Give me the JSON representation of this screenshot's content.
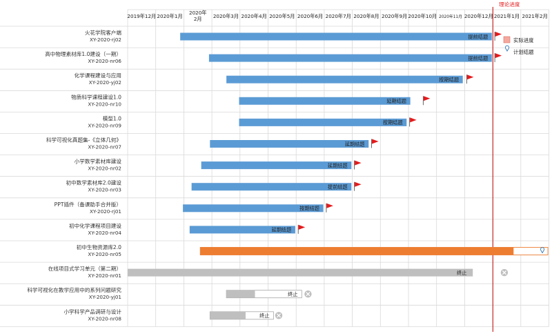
{
  "colors": {
    "actual_bar": "#5b9bd5",
    "active_bar": "#ed7d31",
    "terminated_bar": "#bfbfbf",
    "flag": "#e41a1c",
    "theory_line": "#c00000",
    "grid": "#d9d9d9",
    "legend_marker": "#f4a9a0",
    "plan_pin": "#2e75b6",
    "cancel_icon": "#bfbfbf"
  },
  "chart_data": {
    "type": "gantt",
    "months": [
      "2019年12月",
      "2020年1月",
      "2020年2月",
      "2020年3月",
      "2020年4月",
      "2020年5月",
      "2020年6月",
      "2020年7月",
      "2020年8月",
      "2020年9月",
      "2020年10月",
      "2020年11月",
      "2020年12月",
      "2021年1月",
      "2021年2月"
    ],
    "legend": {
      "actual": "实际进度",
      "planned": "计划结题"
    },
    "theory_line": {
      "label": "理论进度",
      "date": "2020-12-31"
    },
    "projects": [
      {
        "name": "火花学院客户端",
        "code": "XY-2020-rj02",
        "start": "2020-01-28",
        "end": "2020-12-31",
        "status": "提前结题",
        "flag_date": "2021-01-01",
        "type": "done"
      },
      {
        "name": "高中物理素材库1.0建设（一期）",
        "code": "XY-2020-nr06",
        "start": "2020-02-27",
        "end": "2020-12-31",
        "status": "提前结题",
        "flag_date": "2021-01-01",
        "type": "done"
      },
      {
        "name": "化学课程建设与应用",
        "code": "XY-2020-yj02",
        "start": "2020-03-17",
        "end": "2020-11-29",
        "status": "按期结题",
        "flag_date": "2020-12-01",
        "type": "done"
      },
      {
        "name": "物质科学课程建设1.0",
        "code": "XY-2020-nr10",
        "start": "2020-03-31",
        "end": "2020-10-03",
        "status": "延期结题",
        "flag_date": "2020-10-15",
        "type": "done"
      },
      {
        "name": "模型1.0",
        "code": "XY-2020-nr09",
        "start": "2020-03-31",
        "end": "2020-09-29",
        "status": "按期结题",
        "flag_date": "2020-09-30",
        "type": "done"
      },
      {
        "name": "科学可视化真题集-《立体几何》",
        "code": "XY-2020-nr07",
        "start": "2020-02-28",
        "end": "2020-08-19",
        "status": "延期结题",
        "flag_date": "2020-08-20",
        "type": "done"
      },
      {
        "name": "小学数学素材库建设",
        "code": "XY-2020-nr02",
        "start": "2020-02-19",
        "end": "2020-07-31",
        "status": "延期结题",
        "flag_date": "2020-08-01",
        "type": "done"
      },
      {
        "name": "初中数学素材库2.0建设",
        "code": "XY-2020-nr03",
        "start": "2020-02-09",
        "end": "2020-07-31",
        "status": "提前结题",
        "flag_date": "2020-08-01",
        "type": "done"
      },
      {
        "name": "PPT插件（备课助手合并版）",
        "code": "XY-2020-rj01",
        "start": "2020-01-31",
        "end": "2020-06-30",
        "status": "按期结题",
        "flag_date": "2020-07-01",
        "type": "done"
      },
      {
        "name": "初中化学课程项目建设",
        "code": "XY-2020-nr04",
        "start": "2020-02-07",
        "end": "2020-05-31",
        "status": "延期结题",
        "flag_date": "2020-06-01",
        "type": "done"
      },
      {
        "name": "初中生物资源库2.0",
        "code": "XY-2020-nr05",
        "start": "2020-02-18",
        "end": "2021-01-24",
        "plan_end": "2021-02-28",
        "status": "",
        "type": "active"
      },
      {
        "name": "在线项目式学习单元（第二期）",
        "code": "XY-2020-nr01",
        "start": "2019-12-01",
        "end": "2020-12-10",
        "status": "终止",
        "cancel_date": "2021-01-10",
        "type": "terminated"
      },
      {
        "name": "科学可视化在教学应用中的系列问题研究",
        "code": "XY-2020-yj01",
        "start": "2020-03-17",
        "end": "2020-04-17",
        "plan_end": "2020-06-07",
        "status": "终止",
        "cancel_date": "2020-06-10",
        "type": "terminated"
      },
      {
        "name": "小学科学产品调研与设计",
        "code": "XY-2020-nr08",
        "start": "2020-02-28",
        "end": "2020-04-07",
        "plan_end": "2020-05-07",
        "status": "终止",
        "cancel_date": "2020-05-09",
        "type": "terminated"
      }
    ]
  }
}
